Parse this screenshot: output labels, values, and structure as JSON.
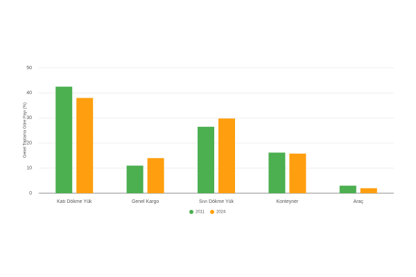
{
  "chart_data": {
    "type": "bar",
    "y_label": "Genel Toplama Göre Payı (%)",
    "categories": [
      "Katı Dökme Yük",
      "Genel Kargo",
      "Sıvı Dökme Yük",
      "Konteyner",
      "Araç"
    ],
    "series": [
      {
        "name": "2011",
        "color": "#4caf50",
        "values": [
          42.5,
          11,
          26.5,
          16.2,
          3
        ]
      },
      {
        "name": "2024",
        "color": "#ff9f0f",
        "values": [
          38,
          14,
          29.8,
          15.8,
          2
        ]
      }
    ],
    "ylim": [
      0,
      50
    ],
    "yticks": [
      0,
      10,
      20,
      30,
      40,
      50
    ],
    "grid": true
  }
}
